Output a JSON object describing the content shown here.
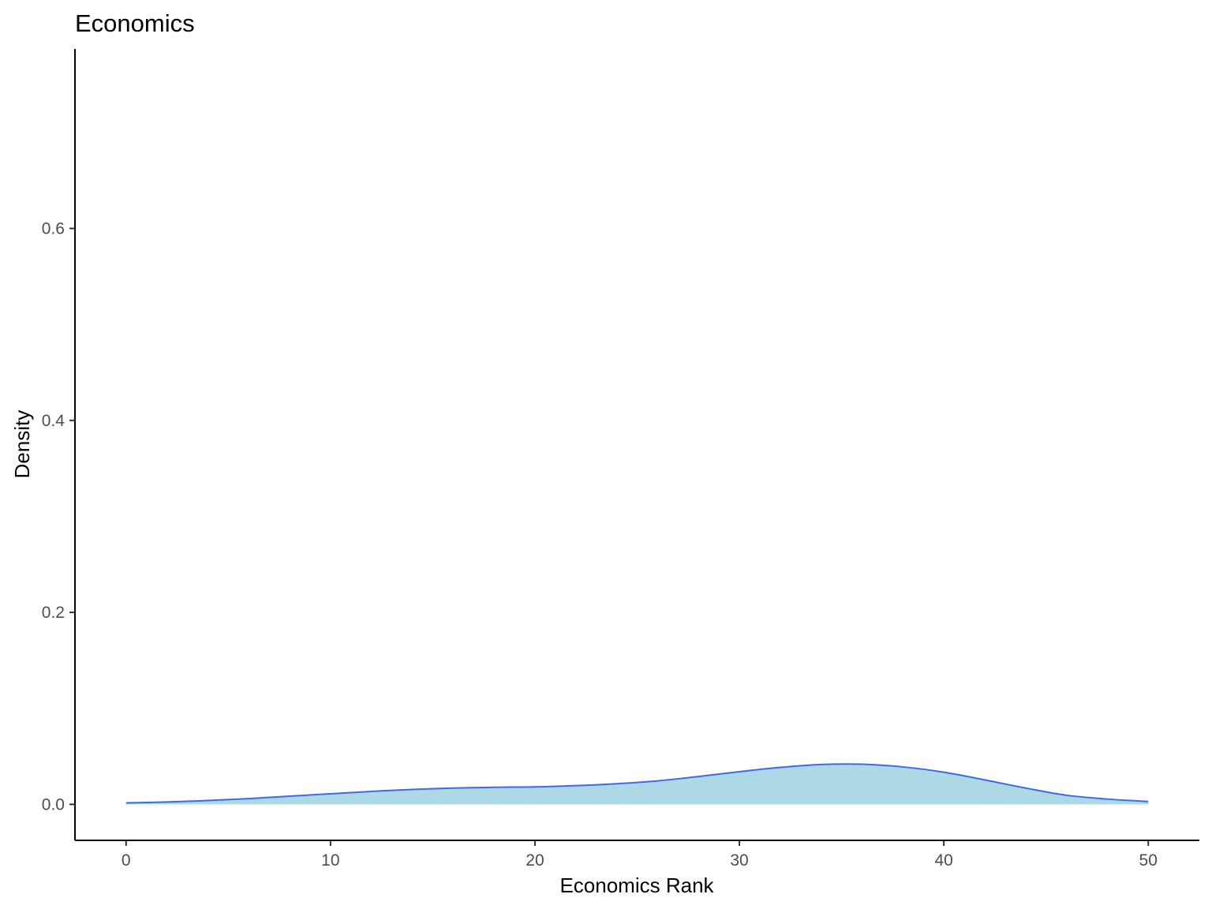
{
  "chart_data": {
    "type": "area",
    "title": "Economics",
    "xlabel": "Economics Rank",
    "ylabel": "Density",
    "xlim": [
      -2.5,
      52.5
    ],
    "ylim": [
      -0.0375,
      0.787
    ],
    "x_ticks": [
      0,
      10,
      20,
      30,
      40,
      50
    ],
    "y_ticks": [
      0.0,
      0.2,
      0.4,
      0.6
    ],
    "y_tick_labels": [
      "0.0",
      "0.2",
      "0.4",
      "0.6"
    ],
    "grid": false,
    "legend": "none",
    "fill_color": "#add8e6",
    "line_color": "#4169e1",
    "series": [
      {
        "x": [
          0,
          2,
          4,
          6,
          8,
          10,
          12,
          14,
          16,
          18,
          20,
          22,
          24,
          26,
          28,
          30,
          32,
          34,
          36,
          38,
          40,
          42,
          44,
          46,
          48,
          50
        ],
        "y": [
          0.0015,
          0.0025,
          0.004,
          0.006,
          0.0085,
          0.011,
          0.0135,
          0.0155,
          0.017,
          0.0178,
          0.0182,
          0.0195,
          0.0215,
          0.0245,
          0.029,
          0.034,
          0.0385,
          0.0415,
          0.0418,
          0.039,
          0.0335,
          0.0255,
          0.017,
          0.0095,
          0.0055,
          0.003
        ]
      }
    ]
  }
}
